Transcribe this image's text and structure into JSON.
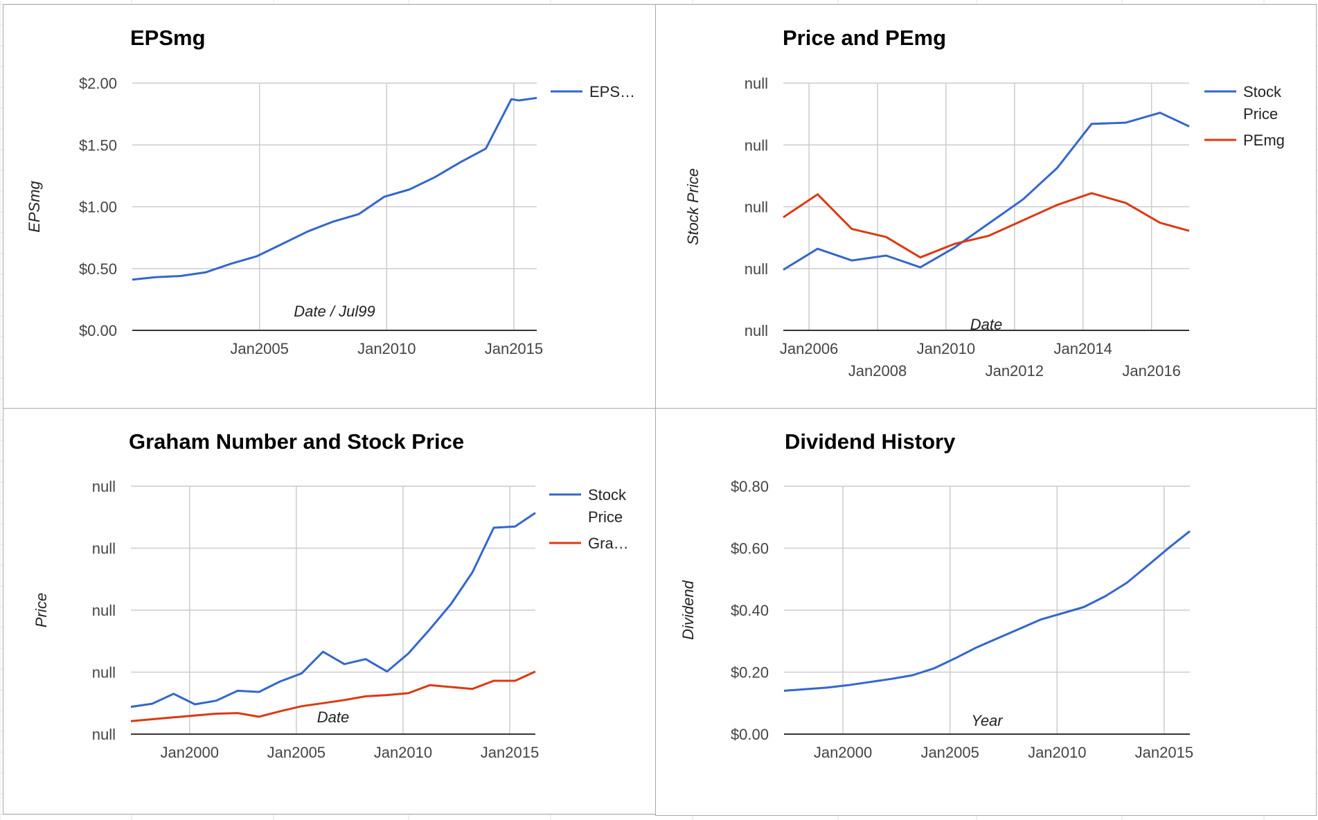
{
  "colors": {
    "blue": "#3366cc",
    "red": "#dc3912",
    "grid": "#cccccc",
    "panel_border": "#a8a8a8"
  },
  "chart_data": [
    {
      "type": "line",
      "title": "EPSmg",
      "xlabel": "Date / Jul99",
      "ylabel": "EPSmg",
      "x_ticks": [
        "Jan2005",
        "Jan2010",
        "Jan2015"
      ],
      "y_ticks": [
        "$0.00",
        "$0.50",
        "$1.00",
        "$1.50",
        "$2.00"
      ],
      "xlim": [
        2000.0,
        2015.9
      ],
      "ylim": [
        0,
        2.0
      ],
      "grid": true,
      "legend_position": "right",
      "series": [
        {
          "name": "EPS…",
          "color": "#3366cc",
          "x": [
            2000.0,
            2000.9,
            2001.9,
            2002.9,
            2003.9,
            2004.9,
            2005.9,
            2006.9,
            2007.9,
            2008.9,
            2009.9,
            2010.9,
            2011.9,
            2012.9,
            2013.9,
            2014.9,
            2015.2,
            2015.9
          ],
          "values": [
            0.41,
            0.43,
            0.44,
            0.47,
            0.54,
            0.6,
            0.7,
            0.8,
            0.88,
            0.94,
            1.08,
            1.14,
            1.24,
            1.36,
            1.47,
            1.87,
            1.86,
            1.88
          ]
        }
      ]
    },
    {
      "type": "line",
      "title": "Price and PEmg",
      "xlabel": "Date",
      "ylabel": "Stock Price",
      "x_ticks": [
        "Jan2006",
        "Jan2008",
        "Jan2010",
        "Jan2012",
        "Jan2014",
        "Jan2016"
      ],
      "y_ticks": [
        "null",
        "null",
        "null",
        "null",
        "null"
      ],
      "xlim": [
        2005.25,
        2017.1
      ],
      "ylim": [
        0,
        4
      ],
      "grid": true,
      "legend_position": "right",
      "series": [
        {
          "name": "Stock Price",
          "color": "#3366cc",
          "x": [
            2005.25,
            2006.25,
            2007.25,
            2008.25,
            2009.25,
            2010.25,
            2011.25,
            2012.25,
            2013.25,
            2014.25,
            2015.25,
            2016.25,
            2017.1
          ],
          "values": [
            0.98,
            1.32,
            1.13,
            1.21,
            1.02,
            1.34,
            1.73,
            2.12,
            2.63,
            3.34,
            3.36,
            3.52,
            3.3
          ]
        },
        {
          "name": "PEmg",
          "color": "#dc3912",
          "x": [
            2005.25,
            2006.25,
            2007.25,
            2008.25,
            2009.25,
            2010.25,
            2011.25,
            2012.25,
            2013.25,
            2014.25,
            2015.25,
            2016.25,
            2017.1
          ],
          "values": [
            1.83,
            2.2,
            1.64,
            1.51,
            1.18,
            1.4,
            1.53,
            1.78,
            2.03,
            2.22,
            2.06,
            1.74,
            1.61
          ]
        }
      ]
    },
    {
      "type": "line",
      "title": "Graham Number and Stock Price",
      "xlabel": "Date",
      "ylabel": "Price",
      "x_ticks": [
        "Jan2000",
        "Jan2005",
        "Jan2010",
        "Jan2015"
      ],
      "y_ticks": [
        "null",
        "null",
        "null",
        "null",
        "null"
      ],
      "xlim": [
        1997.25,
        2016.2
      ],
      "ylim": [
        0,
        4
      ],
      "grid": true,
      "legend_position": "right",
      "series": [
        {
          "name": "Stock Price",
          "color": "#3366cc",
          "x": [
            1997.25,
            1998.25,
            1999.25,
            2000.25,
            2001.25,
            2002.25,
            2003.25,
            2004.25,
            2005.25,
            2006.25,
            2007.25,
            2008.25,
            2009.25,
            2010.25,
            2011.25,
            2012.25,
            2013.25,
            2014.25,
            2015.25,
            2016.2
          ],
          "values": [
            0.44,
            0.49,
            0.65,
            0.48,
            0.54,
            0.7,
            0.68,
            0.85,
            0.98,
            1.33,
            1.13,
            1.21,
            1.01,
            1.3,
            1.69,
            2.1,
            2.61,
            3.33,
            3.35,
            3.57
          ]
        },
        {
          "name": "Gra…",
          "color": "#dc3912",
          "x": [
            1997.25,
            1998.25,
            1999.25,
            2000.25,
            2001.25,
            2002.25,
            2003.25,
            2004.25,
            2005.25,
            2006.25,
            2007.25,
            2008.25,
            2009.25,
            2010.25,
            2011.25,
            2012.25,
            2013.25,
            2014.25,
            2015.25,
            2016.2
          ],
          "values": [
            0.21,
            0.24,
            0.27,
            0.3,
            0.33,
            0.34,
            0.28,
            0.37,
            0.45,
            0.5,
            0.55,
            0.61,
            0.63,
            0.66,
            0.79,
            0.76,
            0.73,
            0.86,
            0.86,
            1.01
          ]
        }
      ]
    },
    {
      "type": "line",
      "title": "Dividend History",
      "xlabel": "Year",
      "ylabel": "Dividend",
      "x_ticks": [
        "Jan2000",
        "Jan2005",
        "Jan2010",
        "Jan2015"
      ],
      "y_ticks": [
        "$0.00",
        "$0.20",
        "$0.40",
        "$0.60",
        "$0.80"
      ],
      "xlim": [
        1997.25,
        2016.2
      ],
      "ylim": [
        0,
        0.8
      ],
      "grid": true,
      "legend_position": "none",
      "series": [
        {
          "name": "",
          "color": "#3366cc",
          "x": [
            1997.25,
            1998.25,
            1999.25,
            2000.25,
            2001.25,
            2002.25,
            2003.25,
            2004.25,
            2005.25,
            2006.25,
            2007.25,
            2008.25,
            2009.25,
            2010.25,
            2011.25,
            2012.25,
            2013.25,
            2014.25,
            2015.25,
            2016.2
          ],
          "values": [
            0.14,
            0.145,
            0.15,
            0.158,
            0.168,
            0.178,
            0.19,
            0.212,
            0.245,
            0.28,
            0.31,
            0.34,
            0.37,
            0.39,
            0.41,
            0.445,
            0.488,
            0.545,
            0.603,
            0.655
          ]
        }
      ]
    }
  ]
}
